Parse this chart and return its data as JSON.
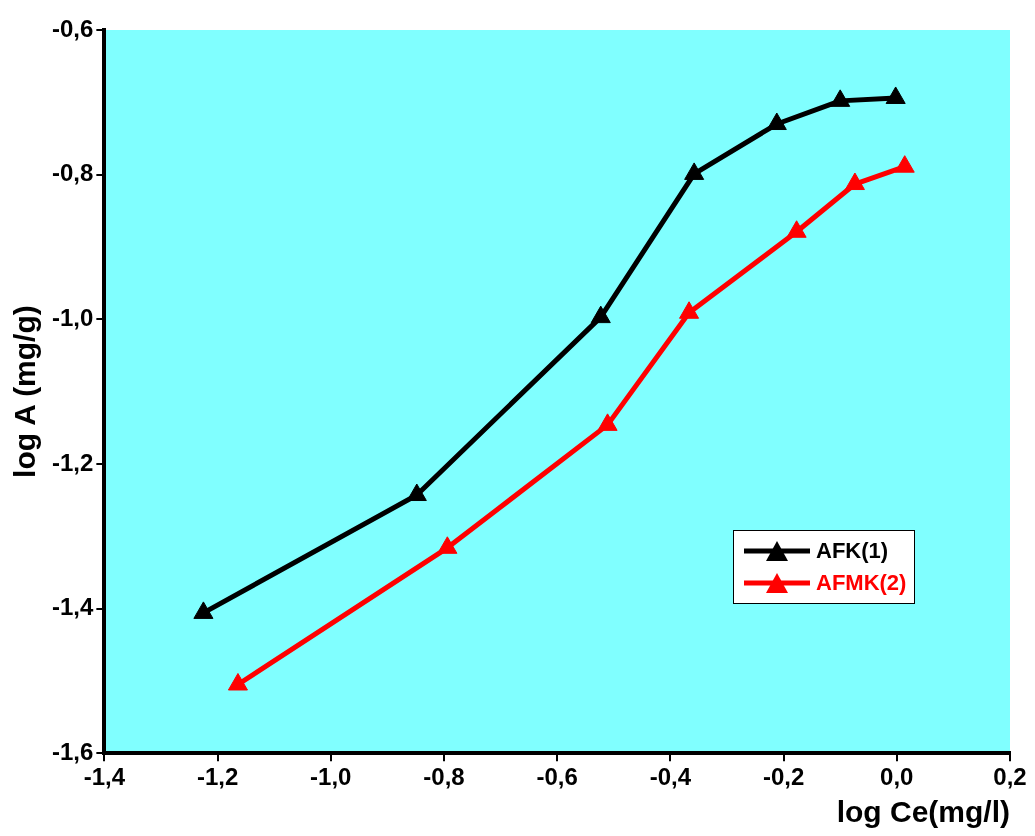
{
  "chart_data": {
    "type": "line",
    "xlabel": "log Ce(mg/l)",
    "ylabel": "log A (mg/g)",
    "xlim": [
      -1.4,
      0.2
    ],
    "ylim": [
      -1.6,
      -0.6
    ],
    "xticks": [
      {
        "value": -1.4,
        "label": "-1,4"
      },
      {
        "value": -1.2,
        "label": "-1,2"
      },
      {
        "value": -1.0,
        "label": "-1,0"
      },
      {
        "value": -0.8,
        "label": "-0,8"
      },
      {
        "value": -0.6,
        "label": "-0,6"
      },
      {
        "value": -0.4,
        "label": "-0,4"
      },
      {
        "value": -0.2,
        "label": "-0,2"
      },
      {
        "value": 0,
        "label": "0,0"
      },
      {
        "value": 0.2,
        "label": "0,2"
      }
    ],
    "yticks": [
      {
        "value": -1.6,
        "label": "-1,6"
      },
      {
        "value": -1.4,
        "label": "-1,4"
      },
      {
        "value": -1.2,
        "label": "-1,2"
      },
      {
        "value": -1.0,
        "label": "-1,0"
      },
      {
        "value": -0.8,
        "label": "-0,8"
      },
      {
        "value": -0.6,
        "label": "-0,6"
      }
    ],
    "grid": false,
    "legend": "right",
    "marker": "triangle",
    "line_style": "solid",
    "series": [
      {
        "name": "AFK(1)",
        "color": "#000000",
        "x": [
          -1.225,
          -0.848,
          -0.523,
          -0.358,
          -0.212,
          -0.1,
          -0.002
        ],
        "values": [
          -1.406,
          -1.243,
          -0.997,
          -0.799,
          -0.73,
          -0.698,
          -0.694
        ]
      },
      {
        "name": "AFMK(2)",
        "color": "#ff0000",
        "x": [
          -1.164,
          -0.794,
          -0.511,
          -0.367,
          -0.177,
          -0.074,
          0.014
        ],
        "values": [
          -1.505,
          -1.316,
          -1.146,
          -0.991,
          -0.879,
          -0.813,
          -0.789
        ]
      }
    ]
  }
}
